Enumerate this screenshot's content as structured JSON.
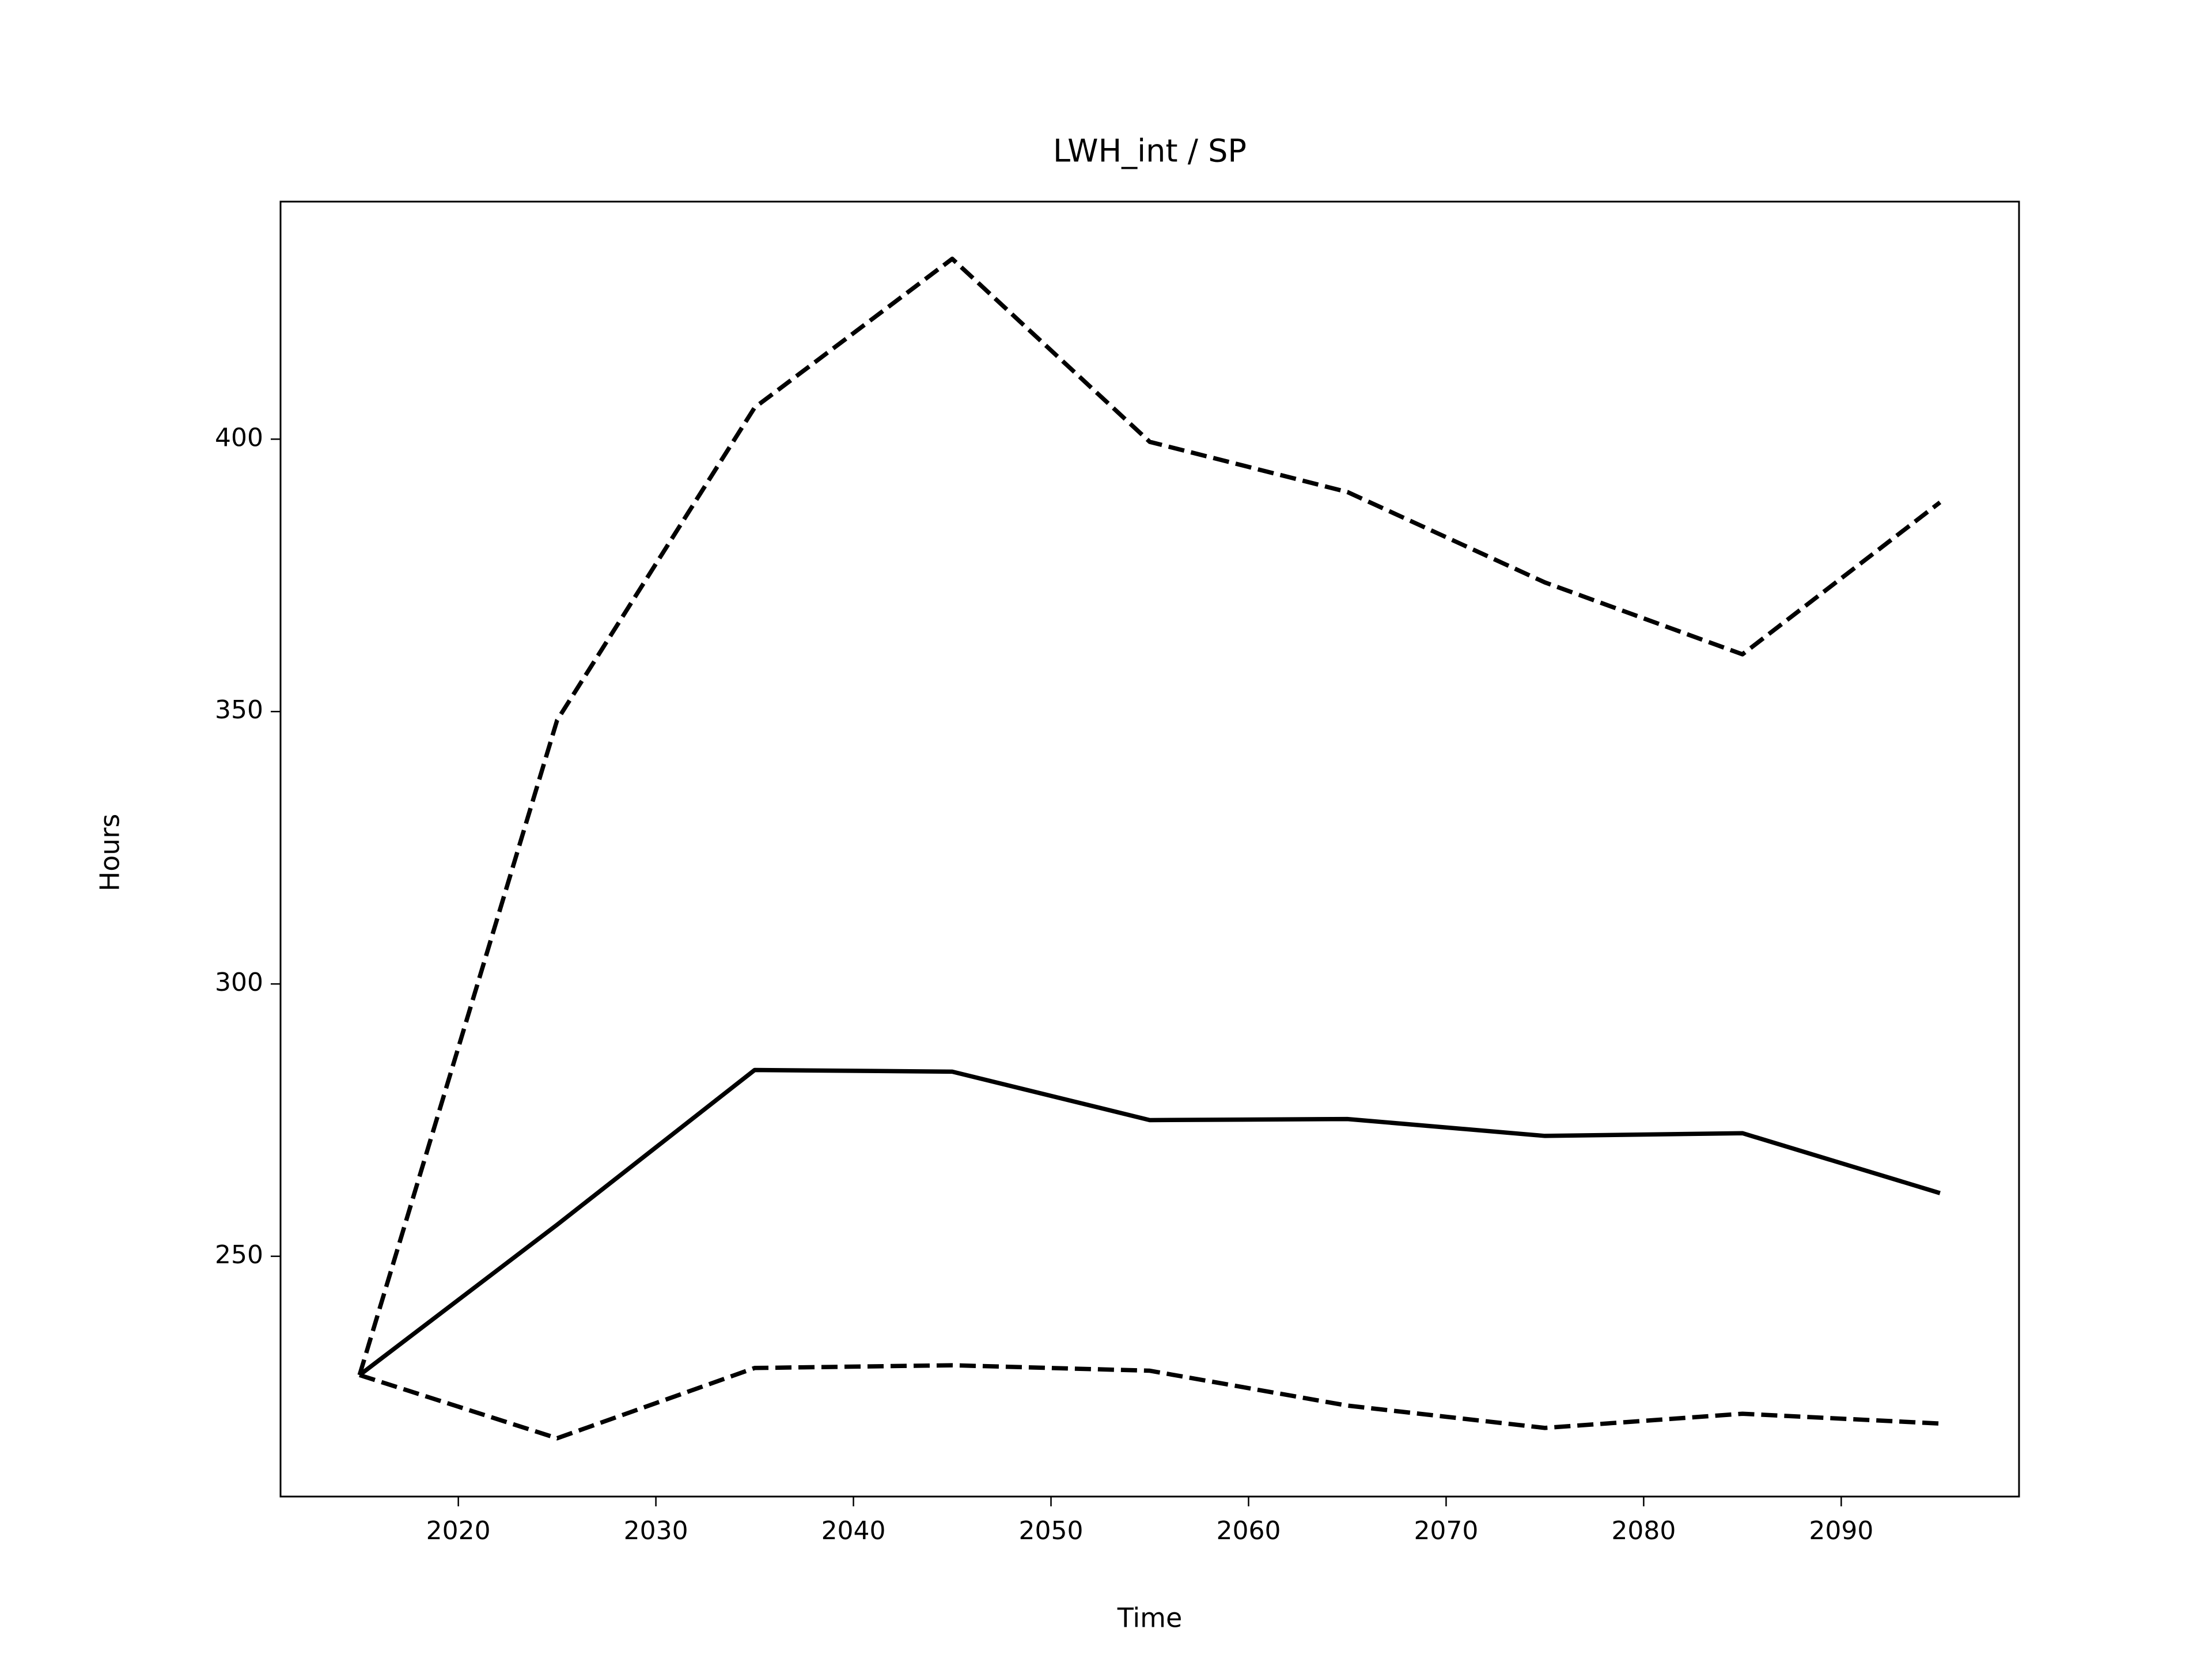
{
  "chart_data": {
    "type": "line",
    "title": "LWH_int / SP",
    "xlabel": "Time",
    "ylabel": "Hours",
    "x": [
      2015,
      2025,
      2035,
      2045,
      2055,
      2065,
      2075,
      2085,
      2095
    ],
    "series": [
      {
        "color": "#000000",
        "linestyle": "solid",
        "values": [
          228.2,
          255.8,
          284.2,
          283.9,
          275.0,
          275.2,
          272.1,
          272.6,
          261.6
        ]
      },
      {
        "color": "#000000",
        "linestyle": "dashed",
        "values": [
          228.2,
          348.4,
          405.8,
          433.1,
          399.5,
          390.3,
          373.7,
          360.5,
          388.4
        ]
      },
      {
        "color": "#000000",
        "linestyle": "dashed",
        "values": [
          228.2,
          216.6,
          229.5,
          230.0,
          229.0,
          222.6,
          218.5,
          221.1,
          219.3
        ]
      }
    ],
    "xlim": [
      2011,
      2099
    ],
    "xticks": [
      2020,
      2030,
      2040,
      2050,
      2060,
      2070,
      2080,
      2090
    ],
    "ylim": [
      205.9,
      443.6
    ],
    "yticks": [
      250,
      300,
      350,
      400
    ],
    "grid": false
  }
}
